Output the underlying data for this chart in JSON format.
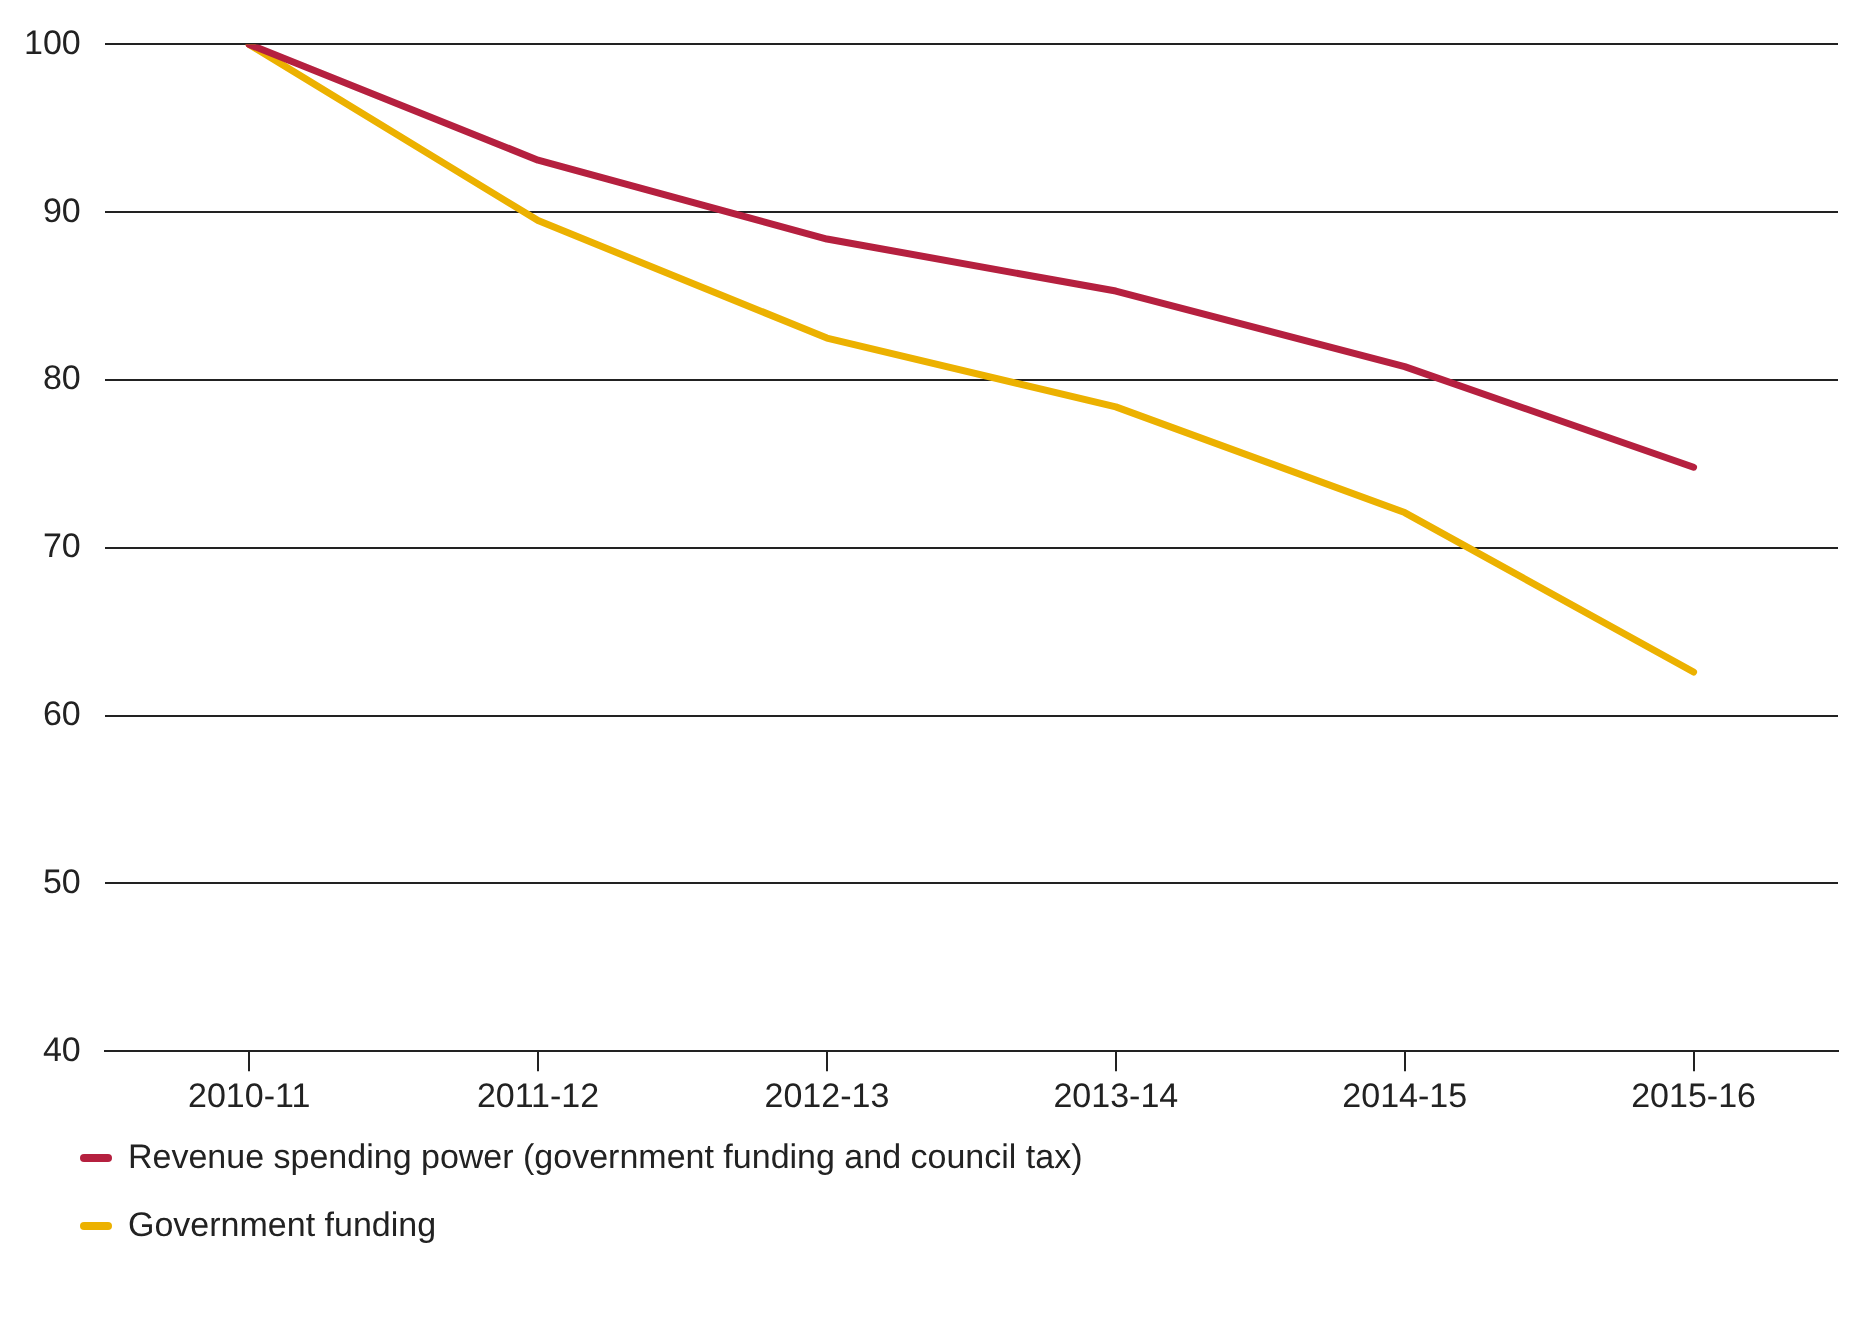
{
  "chart_data": {
    "type": "line",
    "categories": [
      "2010-11",
      "2011-12",
      "2012-13",
      "2013-14",
      "2014-15",
      "2015-16"
    ],
    "series": [
      {
        "name": "Revenue spending power (government funding and council tax)",
        "color": "#b5203f",
        "values": [
          100,
          93.1,
          88.4,
          85.3,
          80.8,
          74.8
        ]
      },
      {
        "name": "Government funding",
        "color": "#ecb100",
        "values": [
          100,
          89.5,
          82.5,
          78.4,
          72.1,
          62.6
        ]
      }
    ],
    "ylim": [
      40,
      100
    ],
    "yticks": [
      40,
      50,
      60,
      70,
      80,
      90,
      100
    ],
    "grid": "y",
    "legend": "bottom",
    "marker": "none",
    "line_style": "solid"
  }
}
